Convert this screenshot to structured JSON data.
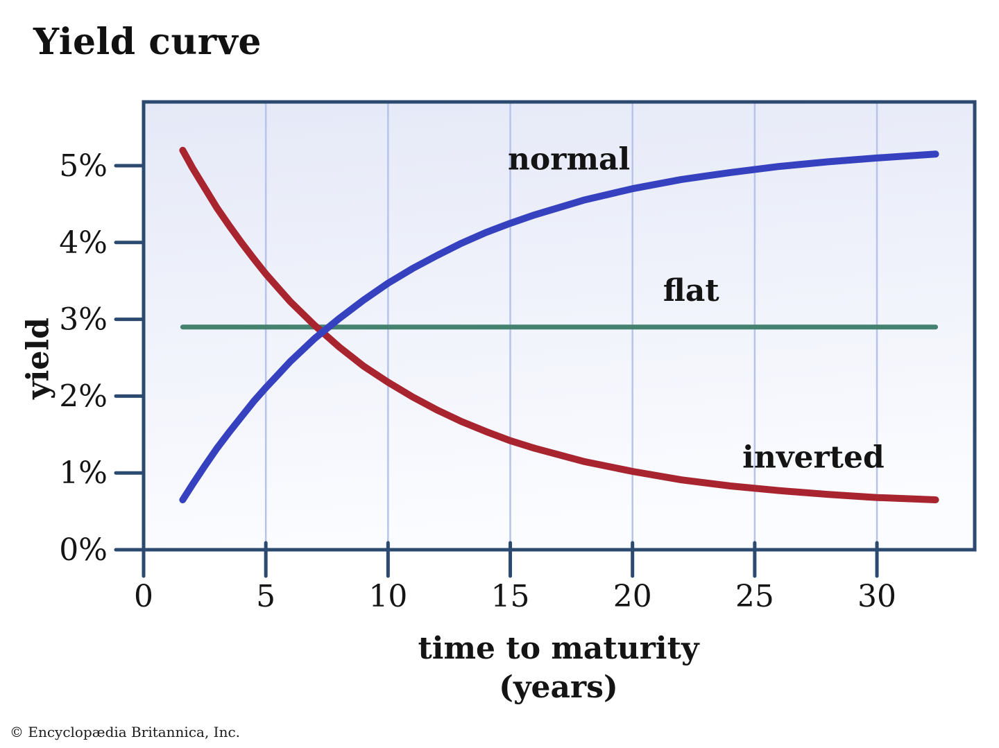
{
  "page": {
    "title": "Yield curve",
    "copyright": "© Encyclopædia Britannica, Inc."
  },
  "chart_data": {
    "type": "line",
    "title": "Yield curve",
    "xlabel_line1": "time to maturity",
    "xlabel_line2": "(years)",
    "ylabel": "yield",
    "xlim": [
      0,
      34
    ],
    "ylim": [
      0,
      5.83
    ],
    "grid": "vertical-only",
    "legend_position": "inline-labels",
    "xticks": [
      {
        "v": 0,
        "label": "0"
      },
      {
        "v": 5,
        "label": "5"
      },
      {
        "v": 10,
        "label": "10"
      },
      {
        "v": 15,
        "label": "15"
      },
      {
        "v": 20,
        "label": "20"
      },
      {
        "v": 25,
        "label": "25"
      },
      {
        "v": 30,
        "label": "30"
      }
    ],
    "yticks": [
      {
        "v": 0,
        "label": "0%"
      },
      {
        "v": 1,
        "label": "1%"
      },
      {
        "v": 2,
        "label": "2%"
      },
      {
        "v": 3,
        "label": "3%"
      },
      {
        "v": 4,
        "label": "4%"
      },
      {
        "v": 5,
        "label": "5%"
      }
    ],
    "colors": {
      "axis": "#2c4a70",
      "grid": "#b7c3ea",
      "bg_top": "#e5e9f7",
      "bg_bottom": "#fbfcff",
      "text": "#141414"
    },
    "series": [
      {
        "name": "flat",
        "label": "flat",
        "color": "#44816f",
        "width": 7,
        "label_pos": {
          "x": 22.4,
          "y": 3.24
        },
        "x": [
          1.6,
          32.4
        ],
        "y": [
          2.9,
          2.9
        ]
      },
      {
        "name": "inverted",
        "label": "inverted",
        "color": "#a8242f",
        "width": 10,
        "label_pos": {
          "x": 27.4,
          "y": 1.07
        },
        "x": [
          1.6,
          2,
          2.5,
          3,
          3.5,
          4,
          4.5,
          5,
          5.5,
          6,
          7,
          8,
          9,
          10,
          11,
          12,
          13,
          14,
          15,
          16,
          18,
          20,
          22,
          24,
          26,
          28,
          30,
          32.4
        ],
        "y": [
          5.2,
          4.97,
          4.71,
          4.45,
          4.22,
          4.0,
          3.79,
          3.59,
          3.41,
          3.23,
          2.92,
          2.64,
          2.39,
          2.18,
          1.99,
          1.82,
          1.67,
          1.54,
          1.42,
          1.32,
          1.15,
          1.02,
          0.91,
          0.83,
          0.77,
          0.72,
          0.68,
          0.65
        ]
      },
      {
        "name": "normal",
        "label": "normal",
        "color": "#3641c0",
        "width": 10,
        "label_pos": {
          "x": 17.4,
          "y": 4.95
        },
        "x": [
          1.6,
          2,
          2.5,
          3,
          3.5,
          4,
          4.5,
          5,
          5.5,
          6,
          7,
          8,
          9,
          10,
          11,
          12,
          13,
          14,
          15,
          16,
          18,
          20,
          22,
          24,
          26,
          28,
          30,
          32.4
        ],
        "y": [
          0.65,
          0.85,
          1.09,
          1.32,
          1.53,
          1.73,
          1.93,
          2.11,
          2.28,
          2.45,
          2.75,
          3.01,
          3.25,
          3.47,
          3.66,
          3.83,
          3.99,
          4.13,
          4.25,
          4.36,
          4.55,
          4.7,
          4.82,
          4.91,
          4.99,
          5.05,
          5.1,
          5.15
        ]
      }
    ]
  }
}
